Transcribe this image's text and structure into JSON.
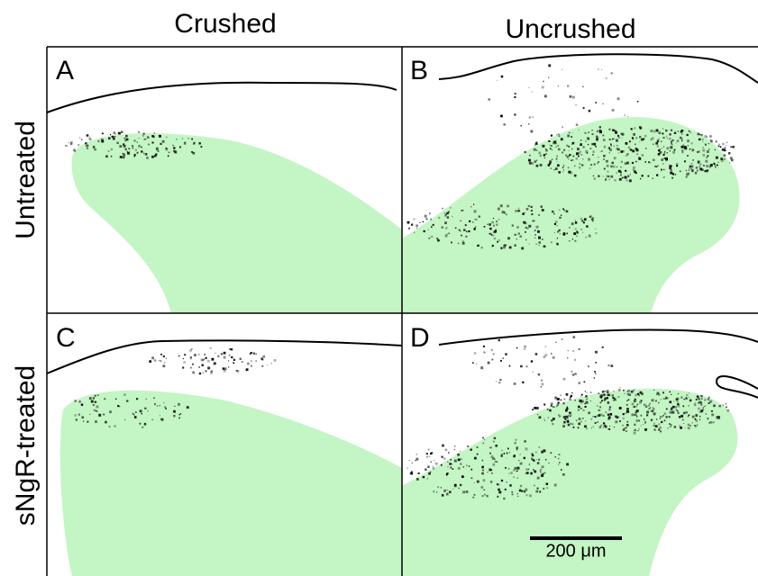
{
  "columns": [
    "Crushed",
    "Uncrushed"
  ],
  "rows": [
    "Untreated",
    "sNgR-treated"
  ],
  "panels": [
    "A",
    "B",
    "C",
    "D"
  ],
  "scale_bar": "200 μm"
}
